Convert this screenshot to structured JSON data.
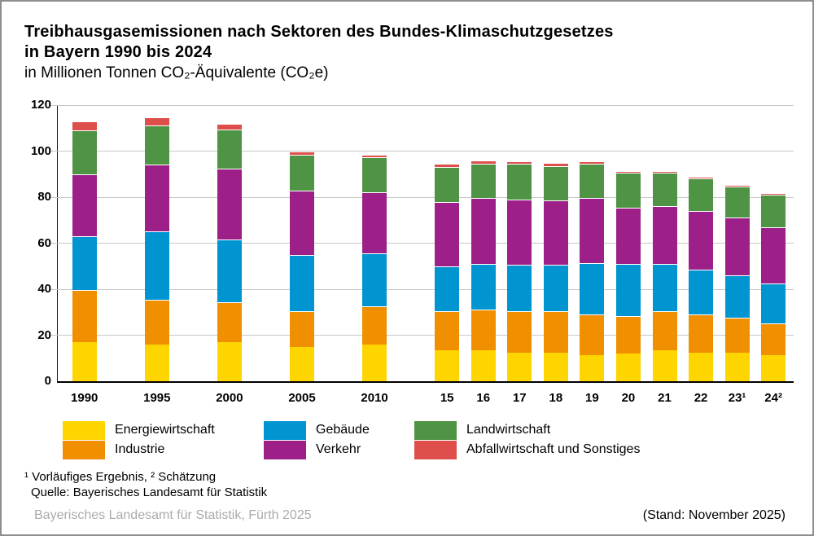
{
  "header": {
    "title_line1": "Treibhausgasemissionen nach Sektoren des Bundes-Klimaschutzgesetzes",
    "title_line2": "in Bayern 1990 bis 2024",
    "subtitle": "in Millionen Tonnen CO₂-Äquivalente (CO₂e)"
  },
  "chart_data": {
    "type": "bar",
    "stacked": true,
    "title": "Treibhausgasemissionen nach Sektoren des Bundes-Klimaschutzgesetzes in Bayern 1990 bis 2024",
    "ylabel": "Millionen Tonnen CO₂-Äquivalente (CO₂e)",
    "xlabel": "",
    "grid": true,
    "legend_position": "bottom",
    "ylim": [
      0,
      120
    ],
    "yticks": [
      0,
      20,
      40,
      60,
      80,
      100,
      120
    ],
    "categories": [
      "1990",
      "1995",
      "2000",
      "2005",
      "2010",
      "15",
      "16",
      "17",
      "18",
      "19",
      "20",
      "21",
      "22",
      "23¹",
      "24²"
    ],
    "slot_index": [
      0,
      2,
      4,
      6,
      8,
      10,
      11,
      12,
      13,
      14,
      15,
      16,
      17,
      18,
      19
    ],
    "series": [
      {
        "name": "Energiewirtschaft",
        "color": "#FFD500",
        "values": [
          17.0,
          16.0,
          17.0,
          15.0,
          16.0,
          13.5,
          13.5,
          12.5,
          12.5,
          11.5,
          12.0,
          13.5,
          12.5,
          12.5,
          11.5
        ]
      },
      {
        "name": "Industrie",
        "color": "#F08F00",
        "values": [
          22.5,
          19.5,
          17.5,
          15.5,
          16.5,
          17.0,
          17.5,
          18.0,
          18.0,
          17.5,
          16.5,
          17.0,
          16.5,
          15.0,
          13.5
        ]
      },
      {
        "name": "Gebäude",
        "color": "#0094D0",
        "values": [
          23.5,
          29.5,
          27.0,
          24.5,
          23.0,
          19.5,
          20.0,
          20.0,
          20.0,
          22.5,
          22.5,
          20.5,
          19.5,
          18.5,
          17.5
        ]
      },
      {
        "name": "Verkehr",
        "color": "#9D2089",
        "values": [
          27.0,
          29.0,
          31.0,
          28.0,
          26.5,
          28.0,
          28.5,
          28.5,
          28.0,
          28.0,
          24.5,
          25.0,
          25.5,
          25.0,
          24.5
        ]
      },
      {
        "name": "Landwirtschaft",
        "color": "#4F9444",
        "values": [
          19.0,
          17.0,
          17.0,
          15.5,
          15.5,
          15.0,
          15.0,
          15.5,
          15.0,
          15.0,
          15.0,
          14.5,
          14.0,
          13.5,
          14.0
        ]
      },
      {
        "name": "Abfallwirtschaft und Sonstiges",
        "color": "#DE4F4B",
        "values": [
          3.5,
          3.5,
          2.0,
          1.0,
          0.7,
          1.0,
          1.0,
          0.8,
          1.0,
          0.8,
          0.5,
          0.5,
          0.5,
          0.5,
          0.5
        ]
      }
    ]
  },
  "footnotes": {
    "line1": "¹ Vorläufiges Ergebnis, ² Schätzung",
    "line2": "Quelle: Bayerisches Landesamt für Statistik"
  },
  "footer": {
    "left": "Bayerisches Landesamt für Statistik, Fürth 2025",
    "right": "(Stand: November 2025)"
  }
}
